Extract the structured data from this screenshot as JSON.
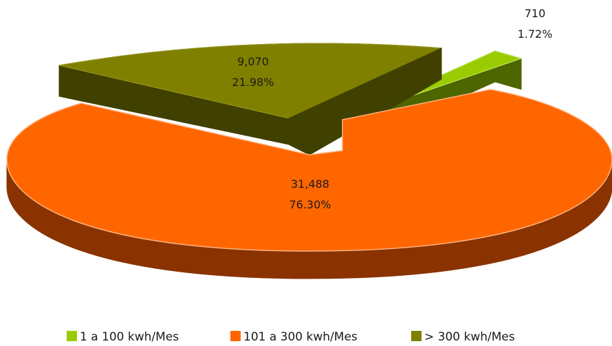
{
  "chart_data": {
    "type": "pie",
    "subtype": "exploded-3d",
    "categories": [
      "1 a 100 kwh/Mes",
      "101 a 300 kwh/Mes",
      "> 300 kwh/Mes"
    ],
    "values": [
      710,
      31488,
      9070
    ],
    "value_labels": [
      "710",
      "31,488",
      "9,070"
    ],
    "percent_labels": [
      "1.72%",
      "76.30%",
      "21.98%"
    ],
    "colors": [
      "#99cc00",
      "#ff6600",
      "#808000"
    ],
    "side_colors": [
      "#4d6600",
      "#8a3300",
      "#404000"
    ],
    "legend_position": "bottom"
  }
}
